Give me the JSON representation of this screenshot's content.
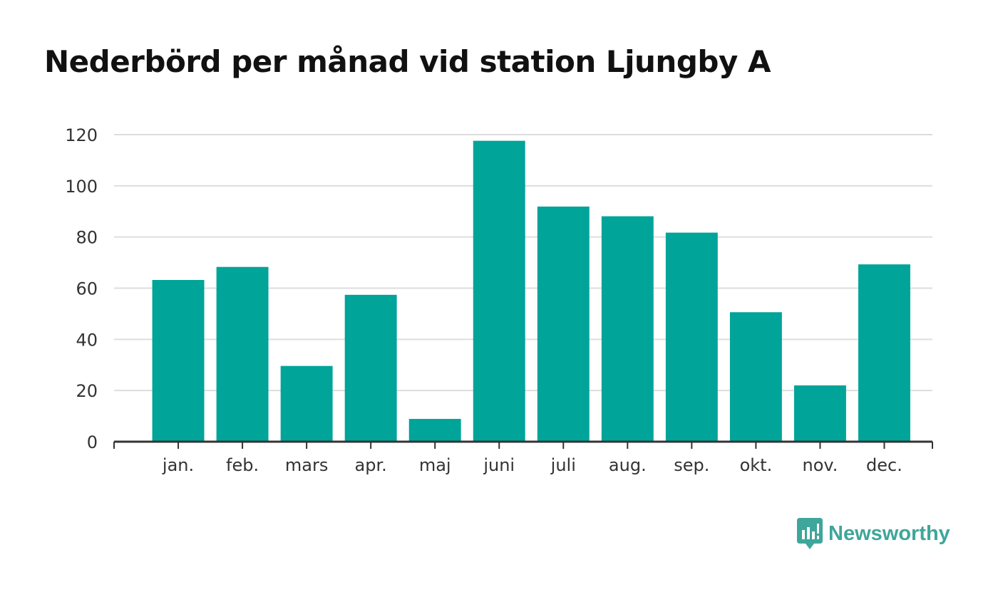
{
  "brand": {
    "name": "Newsworthy",
    "color": "#3ea69a"
  },
  "chart_data": {
    "type": "bar",
    "title": "Nederbörd per månad vid station Ljungby A",
    "xlabel": "",
    "ylabel": "",
    "categories": [
      "jan.",
      "feb.",
      "mars",
      "apr.",
      "maj",
      "juni",
      "juli",
      "aug.",
      "sep.",
      "okt.",
      "nov.",
      "dec."
    ],
    "values": [
      63.2,
      68.3,
      29.6,
      57.4,
      8.9,
      117.6,
      91.9,
      88.1,
      81.7,
      50.6,
      22.0,
      69.3
    ],
    "ylim": [
      0,
      120
    ],
    "yticks": [
      0,
      20,
      40,
      60,
      80,
      100,
      120
    ],
    "grid": true,
    "legend": "none",
    "bar_color": "#00a499",
    "grid_color": "#dddddd",
    "axis_color": "#333333"
  }
}
